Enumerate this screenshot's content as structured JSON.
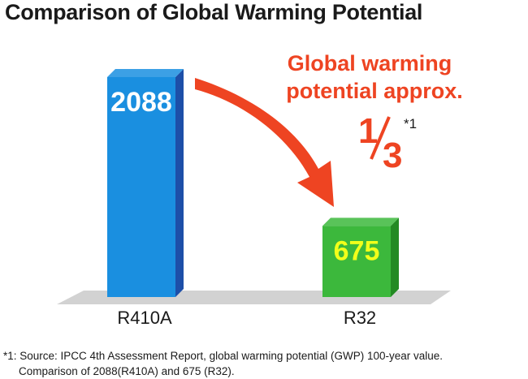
{
  "title": "Comparison of Global Warming Potential",
  "chart_data": {
    "type": "bar",
    "title": "Comparison of Global Warming Potential",
    "categories": [
      "R410A",
      "R32"
    ],
    "values": [
      2088,
      675
    ],
    "ylim": [
      0,
      2088
    ],
    "grid": false,
    "xlabel": "",
    "ylabel": "",
    "bar_colors": [
      "#1a8fe0",
      "#3cb83c"
    ],
    "bar_side_colors": [
      "#1d4fa8",
      "#238a23"
    ],
    "value_label_colors": [
      "#ffffff",
      "#f2ff1a"
    ],
    "annotation": {
      "line1": "Global warming",
      "line2": "potential approx.",
      "fraction_numerator": "1",
      "fraction_denominator": "3",
      "note_mark": "*1",
      "color": "#ee4422"
    }
  },
  "footnote": {
    "line1": "*1: Source: IPCC 4th Assessment Report, global warming potential (GWP) 100-year value.",
    "line2": "Comparison of 2088(R410A) and 675 (R32)."
  }
}
